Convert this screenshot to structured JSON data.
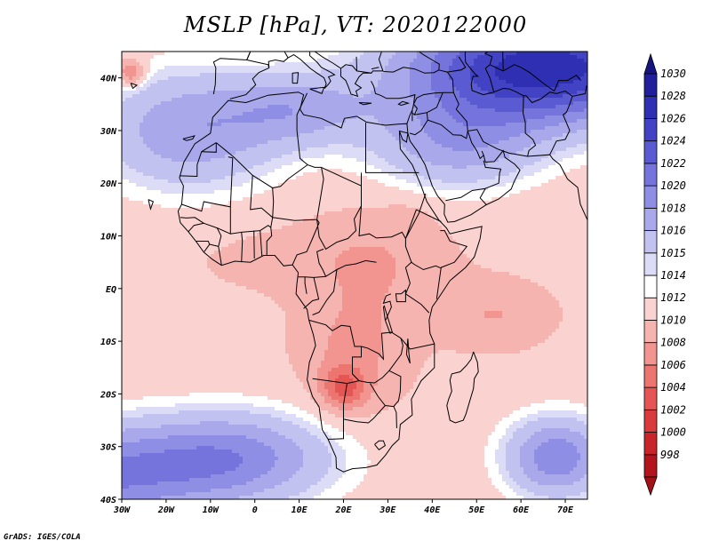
{
  "title": "MSLP [hPa], VT: 2020122000",
  "credit": "GrADS: IGES/COLA",
  "map": {
    "projection": "latlon",
    "lon_range": [
      -30,
      75
    ],
    "lat_range": [
      -40,
      45
    ],
    "x_ticks": [
      {
        "value": -30,
        "label": "30W"
      },
      {
        "value": -20,
        "label": "20W"
      },
      {
        "value": -10,
        "label": "10W"
      },
      {
        "value": 0,
        "label": "0"
      },
      {
        "value": 10,
        "label": "10E"
      },
      {
        "value": 20,
        "label": "20E"
      },
      {
        "value": 30,
        "label": "30E"
      },
      {
        "value": 40,
        "label": "40E"
      },
      {
        "value": 50,
        "label": "50E"
      },
      {
        "value": 60,
        "label": "60E"
      },
      {
        "value": 70,
        "label": "70E"
      }
    ],
    "y_ticks": [
      {
        "value": 40,
        "label": "40N"
      },
      {
        "value": 30,
        "label": "30N"
      },
      {
        "value": 20,
        "label": "20N"
      },
      {
        "value": 10,
        "label": "10N"
      },
      {
        "value": 0,
        "label": "EQ"
      },
      {
        "value": -10,
        "label": "10S"
      },
      {
        "value": -20,
        "label": "20S"
      },
      {
        "value": -30,
        "label": "30S"
      },
      {
        "value": -40,
        "label": "40S"
      }
    ]
  },
  "colorbar": {
    "levels": [
      {
        "label": "998",
        "color": "#b3151c"
      },
      {
        "label": "1000",
        "color": "#c8252b"
      },
      {
        "label": "1002",
        "color": "#d93a3c"
      },
      {
        "label": "1004",
        "color": "#e45553"
      },
      {
        "label": "1006",
        "color": "#ec7570"
      },
      {
        "label": "1008",
        "color": "#f29591"
      },
      {
        "label": "1010",
        "color": "#f6b4b1"
      },
      {
        "label": "1012",
        "color": "#fad3d1"
      },
      {
        "label": "1014",
        "color": "#ffffff"
      },
      {
        "label": "1015",
        "color": "#dcdcf7"
      },
      {
        "label": "1016",
        "color": "#c2c2f1"
      },
      {
        "label": "1018",
        "color": "#a8a8eb"
      },
      {
        "label": "1020",
        "color": "#8e8ee4"
      },
      {
        "label": "1022",
        "color": "#7474dc"
      },
      {
        "label": "1024",
        "color": "#5a5ad2"
      },
      {
        "label": "1026",
        "color": "#4242c5"
      },
      {
        "label": "1028",
        "color": "#2f2fb3"
      },
      {
        "label": "1030",
        "color": "#20209c"
      }
    ],
    "under_color": "#a31016",
    "over_color": "#151580"
  },
  "field": {
    "background_hpa": 1012.5,
    "features": [
      {
        "lon": -45,
        "lat": -36,
        "rx": 32,
        "ry": 10,
        "value": 10
      },
      {
        "lon": -5,
        "lat": -32,
        "rx": 24,
        "ry": 9,
        "value": 8
      },
      {
        "lon": -15,
        "lat": 30,
        "rx": 22,
        "ry": 12,
        "value": 7
      },
      {
        "lon": 65,
        "lat": 42,
        "rx": 32,
        "ry": 11,
        "value": 17
      },
      {
        "lon": 45,
        "lat": 27,
        "rx": 20,
        "ry": 9,
        "value": 6
      },
      {
        "lon": 10,
        "lat": 34,
        "rx": 16,
        "ry": 7,
        "value": 5
      },
      {
        "lon": 68,
        "lat": -32,
        "rx": 12,
        "ry": 8,
        "value": 9
      },
      {
        "lon": -28,
        "lat": 41,
        "rx": 3,
        "ry": 2.5,
        "value": -6
      },
      {
        "lon": 20,
        "lat": -19,
        "rx": 5,
        "ry": 4,
        "value": -6
      },
      {
        "lon": 22,
        "lat": -13,
        "rx": 11,
        "ry": 11,
        "value": -3
      },
      {
        "lon": 28,
        "lat": 4,
        "rx": 15,
        "ry": 12,
        "value": -2
      },
      {
        "lon": 54,
        "lat": -5,
        "rx": 12,
        "ry": 6,
        "value": -2.5
      },
      {
        "lon": 10,
        "lat": 6,
        "rx": 25,
        "ry": 7,
        "value": -1.2
      },
      {
        "lon": 35,
        "lat": 14,
        "rx": 6,
        "ry": 3,
        "value": -1
      }
    ]
  }
}
